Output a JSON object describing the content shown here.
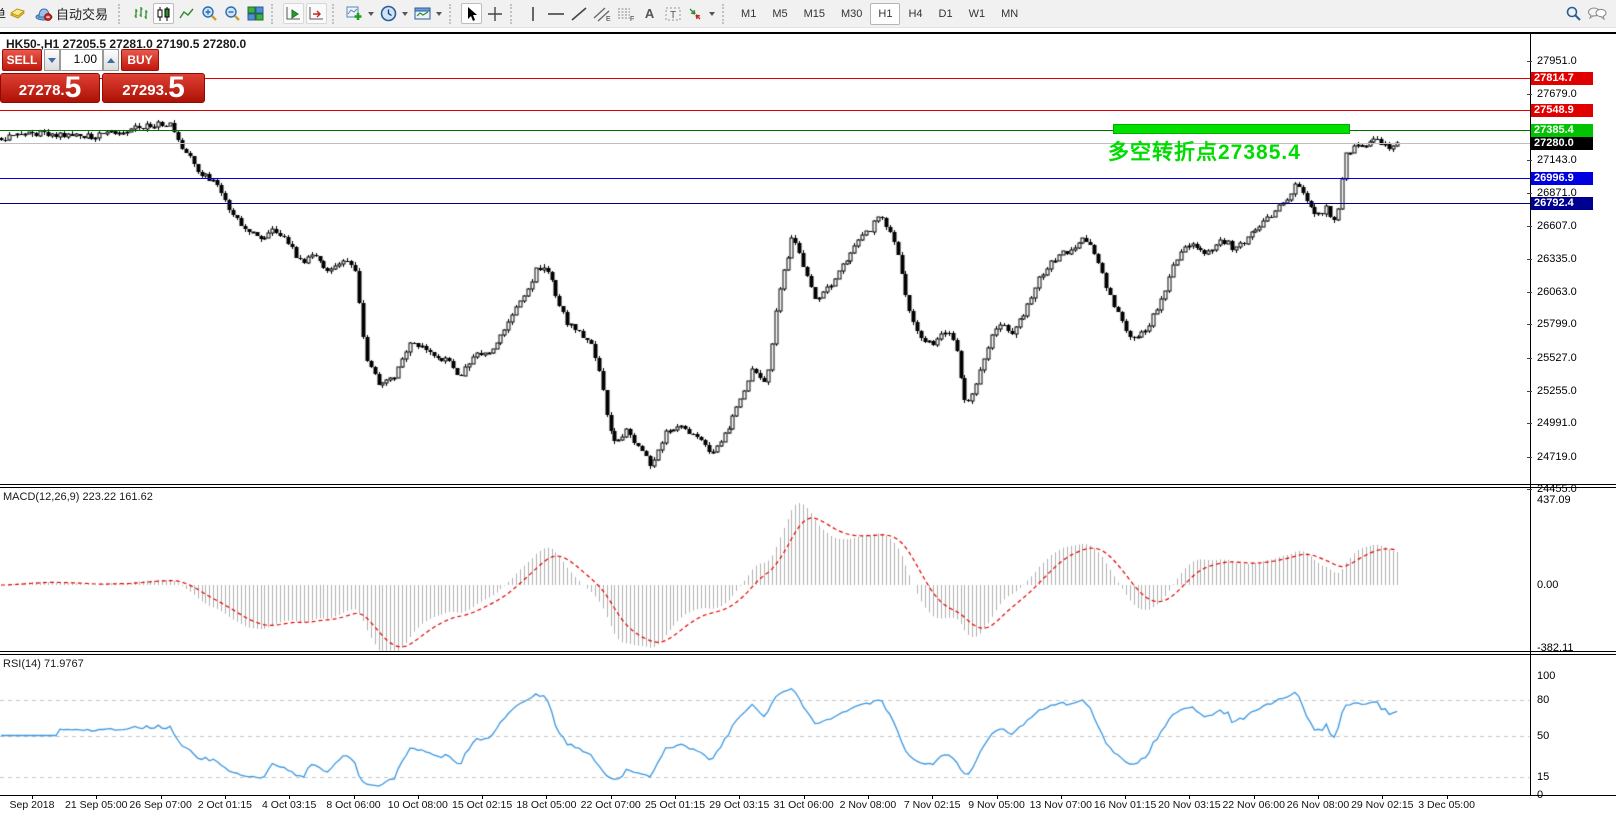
{
  "toolbar": {
    "new_order_partial": "单",
    "autotrading_label": "自动交易",
    "annotation_tools": {
      "text_a": "A",
      "label_t": "T",
      "channel_e": "E",
      "fibo_f": "F"
    },
    "timeframes": [
      "M1",
      "M5",
      "M15",
      "M30",
      "H1",
      "H4",
      "D1",
      "W1",
      "MN"
    ],
    "active_timeframe": "H1"
  },
  "chart": {
    "title": "HK50-,H1  27205.5 27281.0 27190.5 27280.0",
    "symbol": "HK50-",
    "period": "H1"
  },
  "trade_panel": {
    "sell_label": "SELL",
    "buy_label": "BUY",
    "volume": "1.00",
    "sell_price_main": "27278",
    "sell_price_dot": ".",
    "sell_price_big": "5",
    "buy_price_main": "27293",
    "buy_price_dot": ".",
    "buy_price_big": "5"
  },
  "annotation": {
    "text": "多空转折点27385.4",
    "color": "#00dc00"
  },
  "macd_panel": {
    "label": "MACD(12,26,9) 223.22 161.62",
    "axis_labels": [
      "437.09",
      "0.00",
      "-382.11"
    ]
  },
  "rsi_panel": {
    "label": "RSI(14) 71.9767",
    "axis_labels": [
      "100",
      "80",
      "50",
      "15",
      "0"
    ]
  },
  "chart_data": {
    "type": "candlestick",
    "symbol": "HK50-",
    "period": "H1",
    "last_ohlc": {
      "open": 27205.5,
      "high": 27281.0,
      "low": 27190.5,
      "close": 27280.0
    },
    "bid": 27278.5,
    "ask": 27293.5,
    "price_axis_ticks": [
      27951.0,
      27679.0,
      27143.0,
      26871.0,
      26607.0,
      26335.0,
      26063.0,
      25799.0,
      25527.0,
      25255.0,
      24991.0,
      24719.0,
      24455.0
    ],
    "price_axis_range": [
      24455.0,
      27951.0
    ],
    "levels": [
      {
        "label": "27814.7",
        "price": 27814.7,
        "line_color": "#e00000",
        "badge_color": "#e00000"
      },
      {
        "label": "27548.9",
        "price": 27548.9,
        "line_color": "#e00000",
        "badge_color": "#e00000"
      },
      {
        "label": "27385.4",
        "price": 27385.4,
        "line_color": "#007000",
        "badge_color": "#00c400"
      },
      {
        "label": "27280.0",
        "price": 27280.0,
        "line_color": "#bfbfbf",
        "badge_color": "#000000"
      },
      {
        "label": "26996.9",
        "price": 26996.9,
        "line_color": "#0000e0",
        "badge_color": "#0000e0"
      },
      {
        "label": "26792.4",
        "price": 26792.4,
        "line_color": "#000080",
        "badge_color": "#000090"
      }
    ],
    "bars_visible": 356,
    "path_anchors": [
      [
        0,
        27320
      ],
      [
        40,
        27360
      ],
      [
        90,
        27330
      ],
      [
        130,
        27400
      ],
      [
        168,
        27440
      ],
      [
        180,
        27250
      ],
      [
        200,
        27030
      ],
      [
        215,
        26950
      ],
      [
        228,
        26740
      ],
      [
        245,
        26560
      ],
      [
        262,
        26480
      ],
      [
        272,
        26600
      ],
      [
        290,
        26420
      ],
      [
        302,
        26280
      ],
      [
        310,
        26360
      ],
      [
        328,
        26240
      ],
      [
        346,
        26330
      ],
      [
        355,
        26230
      ],
      [
        364,
        25500
      ],
      [
        379,
        25310
      ],
      [
        394,
        25390
      ],
      [
        410,
        25640
      ],
      [
        430,
        25580
      ],
      [
        445,
        25500
      ],
      [
        460,
        25380
      ],
      [
        475,
        25560
      ],
      [
        490,
        25600
      ],
      [
        505,
        25780
      ],
      [
        520,
        26000
      ],
      [
        536,
        26250
      ],
      [
        545,
        26290
      ],
      [
        556,
        25990
      ],
      [
        565,
        25830
      ],
      [
        576,
        25740
      ],
      [
        590,
        25620
      ],
      [
        600,
        25340
      ],
      [
        611,
        24840
      ],
      [
        626,
        24930
      ],
      [
        640,
        24760
      ],
      [
        650,
        24640
      ],
      [
        666,
        24930
      ],
      [
        681,
        24970
      ],
      [
        700,
        24850
      ],
      [
        710,
        24720
      ],
      [
        721,
        24850
      ],
      [
        740,
        25180
      ],
      [
        750,
        25430
      ],
      [
        765,
        25290
      ],
      [
        776,
        26000
      ],
      [
        791,
        26500
      ],
      [
        800,
        26330
      ],
      [
        815,
        25990
      ],
      [
        825,
        26080
      ],
      [
        840,
        26250
      ],
      [
        855,
        26460
      ],
      [
        866,
        26540
      ],
      [
        880,
        26700
      ],
      [
        895,
        26410
      ],
      [
        906,
        25990
      ],
      [
        915,
        25760
      ],
      [
        930,
        25630
      ],
      [
        945,
        25760
      ],
      [
        955,
        25590
      ],
      [
        965,
        25140
      ],
      [
        975,
        25310
      ],
      [
        990,
        25680
      ],
      [
        1000,
        25800
      ],
      [
        1010,
        25710
      ],
      [
        1025,
        25920
      ],
      [
        1040,
        26200
      ],
      [
        1055,
        26340
      ],
      [
        1070,
        26420
      ],
      [
        1085,
        26500
      ],
      [
        1095,
        26370
      ],
      [
        1105,
        26110
      ],
      [
        1120,
        25830
      ],
      [
        1130,
        25660
      ],
      [
        1145,
        25760
      ],
      [
        1160,
        26000
      ],
      [
        1175,
        26340
      ],
      [
        1190,
        26460
      ],
      [
        1205,
        26370
      ],
      [
        1220,
        26500
      ],
      [
        1235,
        26410
      ],
      [
        1250,
        26540
      ],
      [
        1265,
        26660
      ],
      [
        1280,
        26780
      ],
      [
        1290,
        26870
      ],
      [
        1296,
        26980
      ],
      [
        1305,
        26800
      ],
      [
        1315,
        26680
      ],
      [
        1325,
        26740
      ],
      [
        1335,
        26640
      ],
      [
        1345,
        27200
      ],
      [
        1360,
        27260
      ],
      [
        1375,
        27300
      ],
      [
        1390,
        27240
      ],
      [
        1400,
        27280
      ]
    ],
    "indicators": [
      {
        "name": "MACD",
        "params": [
          12,
          26,
          9
        ],
        "main_value": 223.22,
        "signal_value": 161.62,
        "axis": [
          437.09,
          0.0,
          -382.11
        ],
        "histogram_color": "#b0b0b0",
        "signal_color": "#e00000"
      },
      {
        "name": "RSI",
        "params": [
          14
        ],
        "value": 71.9767,
        "level_lines": [
          80,
          50,
          15
        ],
        "axis": [
          0,
          100
        ],
        "line_color": "#3c97e0"
      }
    ],
    "time_axis_labels": [
      "Sep 2018",
      "21 Sep 05:00",
      "26 Sep 07:00",
      "2 Oct 01:15",
      "4 Oct 03:15",
      "8 Oct 06:00",
      "10 Oct 08:00",
      "15 Oct 02:15",
      "18 Oct 05:00",
      "22 Oct 07:00",
      "25 Oct 01:15",
      "29 Oct 03:15",
      "31 Oct 06:00",
      "2 Nov 08:00",
      "7 Nov 02:15",
      "9 Nov 05:00",
      "13 Nov 07:00",
      "16 Nov 01:15",
      "20 Nov 03:15",
      "22 Nov 06:00",
      "26 Nov 08:00",
      "29 Nov 02:15",
      "3 Dec 05:00"
    ]
  }
}
